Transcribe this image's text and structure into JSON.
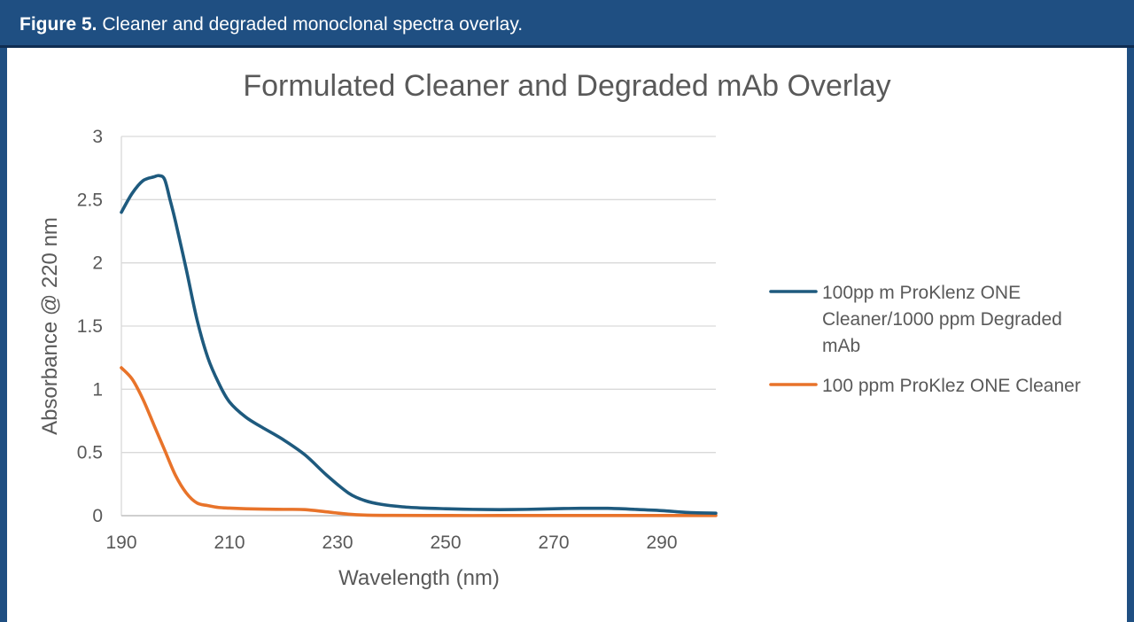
{
  "figure": {
    "label": "Figure 5.",
    "caption": "Cleaner and degraded monoclonal spectra overlay."
  },
  "colors": {
    "header_bg": "#1f4f82",
    "series_blue": "#1e5a7e",
    "series_orange": "#e8732a",
    "grid": "#d9d9d9",
    "text": "#595959"
  },
  "chart_data": {
    "type": "line",
    "title": "Formulated Cleaner and Degraded mAb Overlay",
    "xlabel": "Wavelength (nm)",
    "ylabel": "Absorbance @ 220 nm",
    "xlim": [
      190,
      300
    ],
    "ylim": [
      0,
      3
    ],
    "xticks": [
      "190",
      "210",
      "230",
      "250",
      "270",
      "290"
    ],
    "yticks": [
      "0",
      "0.5",
      "1",
      "1.5",
      "2",
      "2.5",
      "3"
    ],
    "grid": true,
    "legend_position": "right",
    "series": [
      {
        "name": "100ppm ProKlenz ONE Cleaner/1000 ppm Degraded mAb",
        "legend_lines": [
          "100pp m ProKlenz ONE",
          "Cleaner/1000 ppm Degraded",
          "mAb"
        ],
        "color": "#1e5a7e",
        "x": [
          190,
          192,
          194,
          196,
          197,
          198,
          199,
          200,
          202,
          204,
          206,
          208,
          210,
          213,
          216,
          220,
          224,
          228,
          232,
          235,
          238,
          242,
          246,
          250,
          255,
          260,
          265,
          270,
          275,
          280,
          285,
          290,
          295,
          300
        ],
        "y": [
          2.4,
          2.55,
          2.65,
          2.68,
          2.69,
          2.66,
          2.5,
          2.33,
          1.95,
          1.55,
          1.25,
          1.05,
          0.9,
          0.78,
          0.7,
          0.6,
          0.48,
          0.32,
          0.18,
          0.12,
          0.09,
          0.07,
          0.06,
          0.055,
          0.05,
          0.048,
          0.05,
          0.055,
          0.058,
          0.058,
          0.05,
          0.04,
          0.025,
          0.02
        ]
      },
      {
        "name": "100 ppm ProKlez ONE Cleaner",
        "legend_lines": [
          "100 ppm ProKlez ONE Cleaner"
        ],
        "color": "#e8732a",
        "x": [
          190,
          192,
          194,
          196,
          198,
          200,
          202,
          204,
          206,
          208,
          210,
          213,
          216,
          220,
          224,
          228,
          232,
          235,
          240,
          250,
          260,
          270,
          280,
          290,
          300
        ],
        "y": [
          1.17,
          1.08,
          0.92,
          0.72,
          0.52,
          0.32,
          0.18,
          0.1,
          0.08,
          0.065,
          0.06,
          0.055,
          0.052,
          0.05,
          0.048,
          0.03,
          0.012,
          0.005,
          0.002,
          0.001,
          0.001,
          0.001,
          0.001,
          0.001,
          0.001
        ]
      }
    ]
  }
}
